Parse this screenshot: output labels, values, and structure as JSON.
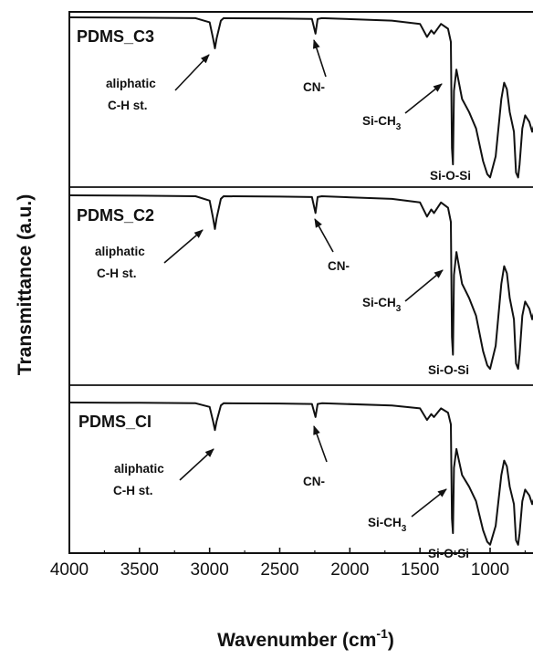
{
  "chart_data": {
    "type": "line",
    "xlabel_main": "Wavenumber (cm",
    "xlabel_sup": "-1",
    "xlabel_tail": ")",
    "ylabel": "Transmittance (a.u.)",
    "xlim": [
      4000,
      650
    ],
    "xticks": [
      4000,
      3500,
      3000,
      2500,
      2000,
      1500,
      1000
    ],
    "reversed_x": true,
    "grid": false,
    "spectrum_x": [
      4000,
      3500,
      3100,
      3000,
      2975,
      2962,
      2950,
      2920,
      2900,
      2500,
      2270,
      2245,
      2230,
      2200,
      1700,
      1500,
      1450,
      1420,
      1400,
      1350,
      1300,
      1280,
      1272,
      1265,
      1258,
      1240,
      1200,
      1150,
      1100,
      1050,
      1020,
      1000,
      960,
      920,
      900,
      880,
      860,
      830,
      815,
      800,
      790,
      770,
      750,
      720,
      700,
      680,
      650
    ],
    "spectrum_y": [
      1.0,
      0.998,
      0.995,
      0.97,
      0.87,
      0.81,
      0.87,
      0.98,
      0.995,
      0.993,
      0.99,
      0.9,
      0.99,
      0.995,
      0.98,
      0.96,
      0.88,
      0.92,
      0.9,
      0.96,
      0.93,
      0.85,
      0.2,
      0.1,
      0.55,
      0.68,
      0.5,
      0.42,
      0.32,
      0.12,
      0.04,
      0.02,
      0.15,
      0.5,
      0.6,
      0.56,
      0.42,
      0.3,
      0.05,
      0.02,
      0.1,
      0.32,
      0.4,
      0.36,
      0.3,
      0.36,
      0.42
    ],
    "panels": [
      {
        "name": "PDMS_C3",
        "annotations": {
          "aliphatic_line1": "aliphatic",
          "aliphatic_line2": "C-H st.",
          "cn": "CN-",
          "sich_main": "Si-CH",
          "sich_sub": "3",
          "siosi": "Si-O-Si"
        }
      },
      {
        "name": "PDMS_C2",
        "annotations": {
          "aliphatic_line1": "aliphatic",
          "aliphatic_line2": "C-H st.",
          "cn": "CN-",
          "sich_main": "Si-CH",
          "sich_sub": "3",
          "siosi": "Si-O-Si"
        }
      },
      {
        "name": "PDMS_CI",
        "annotations": {
          "aliphatic_line1": "aliphatic",
          "aliphatic_line2": "C-H st.",
          "cn": "CN-",
          "sich_main": "Si-CH",
          "sich_sub": "3",
          "siosi": "Si-O-Si"
        }
      }
    ]
  }
}
